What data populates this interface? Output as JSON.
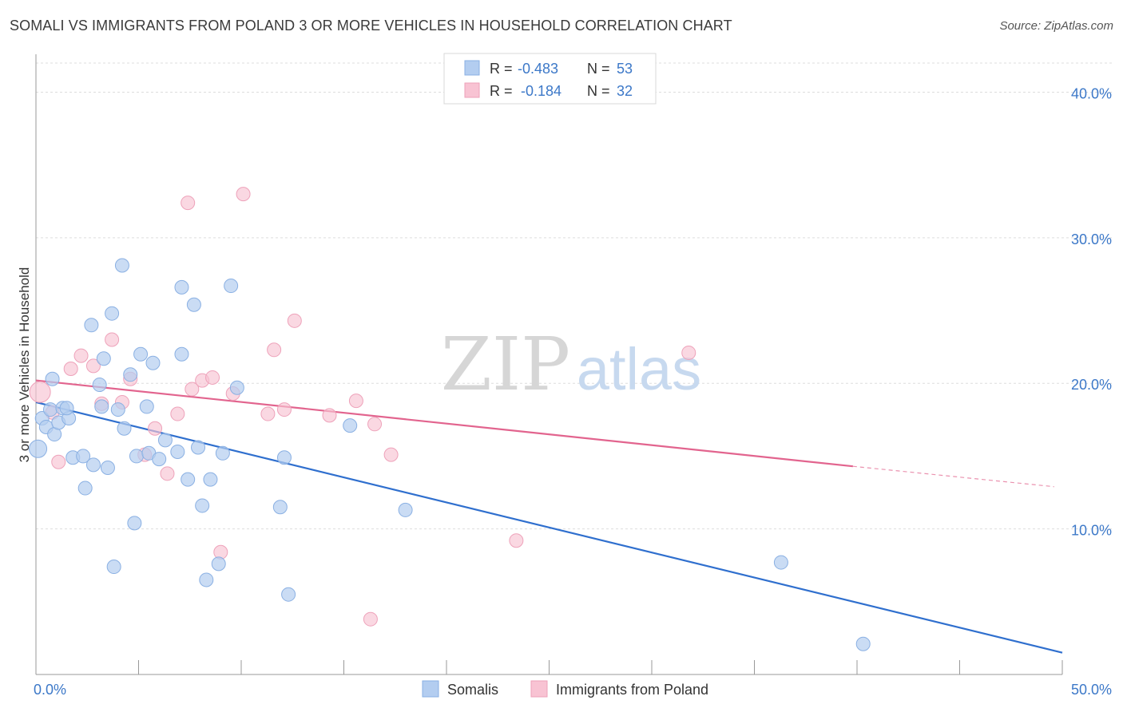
{
  "title": "SOMALI VS IMMIGRANTS FROM POLAND 3 OR MORE VEHICLES IN HOUSEHOLD CORRELATION CHART",
  "source": "Source: ZipAtlas.com",
  "watermark": {
    "zip": "ZIP",
    "atlas": "atlas"
  },
  "colors": {
    "somali_fill": "#b3cdf0",
    "somali_stroke": "#8ab0e3",
    "somali_line": "#2f6fce",
    "poland_fill": "#f8c3d3",
    "poland_stroke": "#eea2ba",
    "poland_line": "#e2648e",
    "axis_text": "#3c78c8",
    "grid": "#dddddd"
  },
  "legend_top": [
    {
      "r_label": "R = ",
      "r_value": "-0.483",
      "n_label": "N = ",
      "n_value": "53"
    },
    {
      "r_label": "R = ",
      "r_value": "-0.184",
      "n_label": "N = ",
      "n_value": "32"
    }
  ],
  "chart_data": {
    "type": "scatter",
    "title": "SOMALI VS IMMIGRANTS FROM POLAND 3 OR MORE VEHICLES IN HOUSEHOLD CORRELATION CHART",
    "xlabel": "",
    "ylabel": "3 or more Vehicles in Household",
    "xlim": [
      0,
      50
    ],
    "ylim": [
      0,
      42
    ],
    "x_tick_labels": [
      "0.0%",
      "50.0%"
    ],
    "y_ticks": [
      10,
      20,
      30,
      40
    ],
    "y_tick_labels": [
      "10.0%",
      "20.0%",
      "30.0%",
      "40.0%"
    ],
    "grid": "horizontal dashed",
    "legend_position": "bottom-center",
    "series": [
      {
        "name": "Somalis",
        "points": [
          [
            0.1,
            15.5
          ],
          [
            0.3,
            17.6
          ],
          [
            0.5,
            17.0
          ],
          [
            0.7,
            18.2
          ],
          [
            0.8,
            20.3
          ],
          [
            0.9,
            16.5
          ],
          [
            1.1,
            17.3
          ],
          [
            1.3,
            18.3
          ],
          [
            1.6,
            17.6
          ],
          [
            1.8,
            14.9
          ],
          [
            2.3,
            15.0
          ],
          [
            2.4,
            12.8
          ],
          [
            2.7,
            24.0
          ],
          [
            2.8,
            14.4
          ],
          [
            3.1,
            19.9
          ],
          [
            3.2,
            18.4
          ],
          [
            3.3,
            21.7
          ],
          [
            3.5,
            14.2
          ],
          [
            3.7,
            24.8
          ],
          [
            3.8,
            7.4
          ],
          [
            4.0,
            18.2
          ],
          [
            4.2,
            28.1
          ],
          [
            4.3,
            16.9
          ],
          [
            4.6,
            20.6
          ],
          [
            4.8,
            10.4
          ],
          [
            4.9,
            15.0
          ],
          [
            5.1,
            22.0
          ],
          [
            5.4,
            18.4
          ],
          [
            5.5,
            15.2
          ],
          [
            5.7,
            21.4
          ],
          [
            6.0,
            14.8
          ],
          [
            6.3,
            16.1
          ],
          [
            6.9,
            15.3
          ],
          [
            7.1,
            26.6
          ],
          [
            7.1,
            22.0
          ],
          [
            7.4,
            13.4
          ],
          [
            7.7,
            25.4
          ],
          [
            7.9,
            15.6
          ],
          [
            8.1,
            11.6
          ],
          [
            8.3,
            6.5
          ],
          [
            8.5,
            13.4
          ],
          [
            8.9,
            7.6
          ],
          [
            9.1,
            15.2
          ],
          [
            9.5,
            26.7
          ],
          [
            9.8,
            19.7
          ],
          [
            11.9,
            11.5
          ],
          [
            12.1,
            14.9
          ],
          [
            12.3,
            5.5
          ],
          [
            15.3,
            17.1
          ],
          [
            18.0,
            11.3
          ],
          [
            36.3,
            7.7
          ],
          [
            40.3,
            2.1
          ],
          [
            1.5,
            18.3
          ]
        ],
        "trend": {
          "x": [
            0,
            50
          ],
          "y": [
            18.7,
            1.5
          ]
        }
      },
      {
        "name": "Immigrants from Poland",
        "points": [
          [
            0.2,
            19.4
          ],
          [
            0.8,
            18.0
          ],
          [
            1.1,
            14.6
          ],
          [
            1.7,
            21.0
          ],
          [
            2.2,
            21.9
          ],
          [
            2.8,
            21.2
          ],
          [
            3.2,
            18.6
          ],
          [
            3.7,
            23.0
          ],
          [
            4.2,
            18.7
          ],
          [
            4.6,
            20.3
          ],
          [
            5.3,
            15.1
          ],
          [
            5.8,
            16.9
          ],
          [
            6.4,
            13.8
          ],
          [
            6.9,
            17.9
          ],
          [
            7.6,
            19.6
          ],
          [
            8.1,
            20.2
          ],
          [
            8.6,
            20.4
          ],
          [
            9.0,
            8.4
          ],
          [
            9.6,
            19.3
          ],
          [
            10.1,
            33.0
          ],
          [
            11.3,
            17.9
          ],
          [
            11.6,
            22.3
          ],
          [
            12.1,
            18.2
          ],
          [
            12.6,
            24.3
          ],
          [
            14.3,
            17.8
          ],
          [
            15.6,
            18.8
          ],
          [
            16.3,
            3.8
          ],
          [
            16.5,
            17.2
          ],
          [
            17.3,
            15.1
          ],
          [
            23.4,
            9.2
          ],
          [
            31.8,
            22.1
          ],
          [
            7.4,
            32.4
          ]
        ],
        "trend": {
          "x": [
            0,
            39.8
          ],
          "y": [
            20.2,
            14.3
          ]
        },
        "trend_extension": {
          "x": [
            39.8,
            49.6
          ],
          "y": [
            14.3,
            12.9
          ]
        }
      }
    ]
  }
}
